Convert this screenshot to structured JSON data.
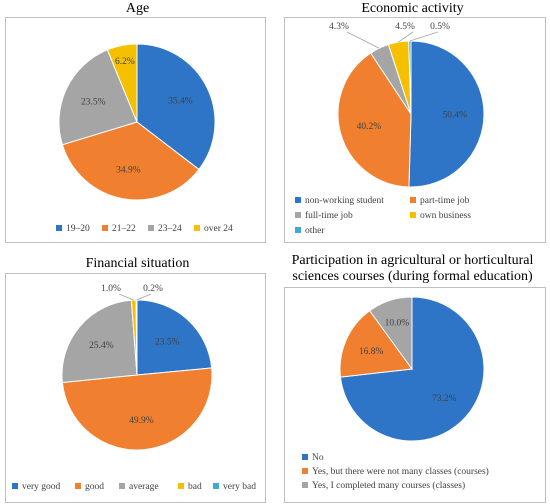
{
  "chart_data": [
    {
      "type": "pie",
      "title": "Age",
      "categories": [
        "19–20",
        "21–22",
        "23–24",
        "over 24"
      ],
      "values": [
        35.4,
        34.9,
        23.5,
        6.2
      ],
      "labels": [
        "35.4%",
        "34.9%",
        "23.5%",
        "6.2%"
      ],
      "colors": [
        "#2e75c7",
        "#f08030",
        "#a5a5a5",
        "#f5c000"
      ],
      "legend_position": "bottom"
    },
    {
      "type": "pie",
      "title": "Economic activity",
      "categories": [
        "non-working student",
        "part-time job",
        "full-time job",
        "own business",
        "other"
      ],
      "values": [
        50.4,
        40.2,
        4.3,
        4.5,
        0.5
      ],
      "labels": [
        "50.4%",
        "40.2%",
        "4.3%",
        "4.5%",
        "0.5%"
      ],
      "colors": [
        "#2e75c7",
        "#f08030",
        "#a5a5a5",
        "#f5c000",
        "#3fa9d6"
      ],
      "legend_position": "bottom"
    },
    {
      "type": "pie",
      "title": "Financial situation",
      "categories": [
        "very good",
        "good",
        "average",
        "bad",
        "very bad"
      ],
      "values": [
        23.5,
        49.9,
        25.4,
        1.0,
        0.2
      ],
      "labels": [
        "23.5%",
        "49.9%",
        "25.4%",
        "1.0%",
        "0.2%"
      ],
      "colors": [
        "#2e75c7",
        "#f08030",
        "#a5a5a5",
        "#f5c000",
        "#3fa9d6"
      ],
      "legend_position": "bottom"
    },
    {
      "type": "pie",
      "title_lines": [
        "Participation in agricultural or horticultural",
        "sciences courses (during formal education)"
      ],
      "categories": [
        "No",
        "Yes, but there were not many classes (courses)",
        "Yes, I completed many courses (classes)"
      ],
      "values": [
        73.2,
        16.8,
        10.0
      ],
      "labels": [
        "73.2%",
        "16.8%",
        "10.0%"
      ],
      "colors": [
        "#2e75c7",
        "#f08030",
        "#a5a5a5"
      ],
      "legend_position": "bottom"
    }
  ]
}
